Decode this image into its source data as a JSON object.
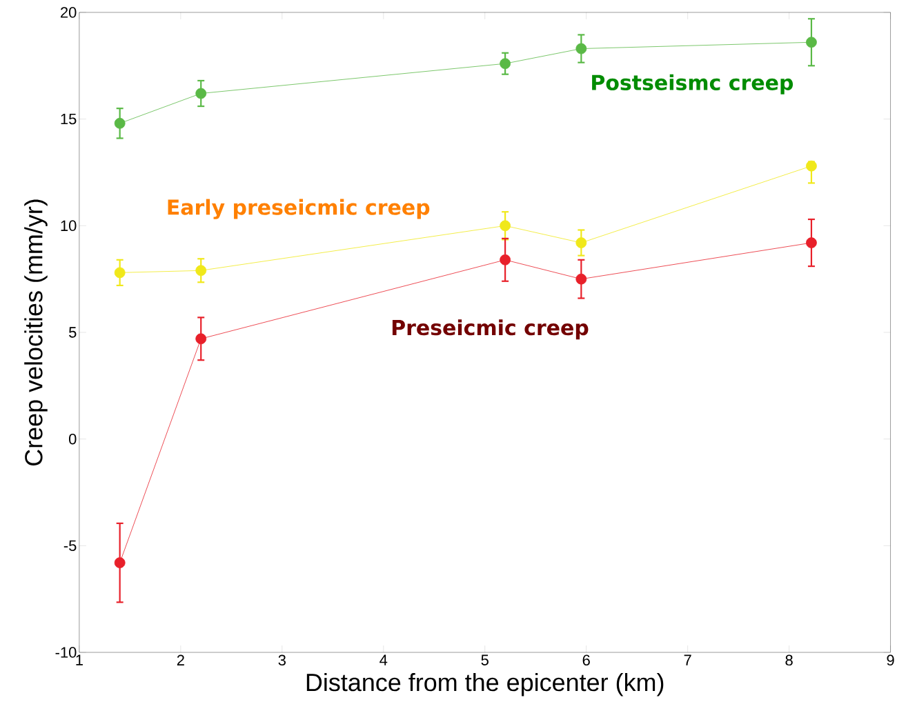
{
  "chart_data": {
    "type": "line",
    "xlabel": "Distance from the epicenter  (km)",
    "ylabel": "Creep velocities  (mm/yr)",
    "x": [
      1.4,
      2.2,
      5.2,
      5.95,
      8.22
    ],
    "xlim": [
      1,
      9
    ],
    "xticks": [
      1,
      2,
      3,
      4,
      5,
      6,
      7,
      8,
      9
    ],
    "ylim": [
      -10,
      20
    ],
    "yticks": [
      -10,
      -5,
      0,
      5,
      10,
      15,
      20
    ],
    "marker": "circle",
    "line_style": "solid",
    "series": [
      {
        "name": "Postseismc creep",
        "color": "#5ab946",
        "values": [
          14.8,
          16.2,
          17.6,
          18.3,
          18.6
        ],
        "errors": [
          0.7,
          0.6,
          0.5,
          0.65,
          1.1
        ]
      },
      {
        "name": "Early preseicmic creep",
        "color": "#f0e81a",
        "values": [
          7.8,
          7.9,
          10.0,
          9.2,
          12.8
        ],
        "errors": [
          0.6,
          0.55,
          0.65,
          0.6,
          [
            12.0,
            13.0
          ]
        ]
      },
      {
        "name": "Preseicmic creep",
        "color": "#e8202a",
        "values": [
          -5.8,
          4.7,
          8.4,
          7.5,
          9.2
        ],
        "errors": [
          1.85,
          1.0,
          1.0,
          0.9,
          1.1
        ]
      }
    ]
  }
}
